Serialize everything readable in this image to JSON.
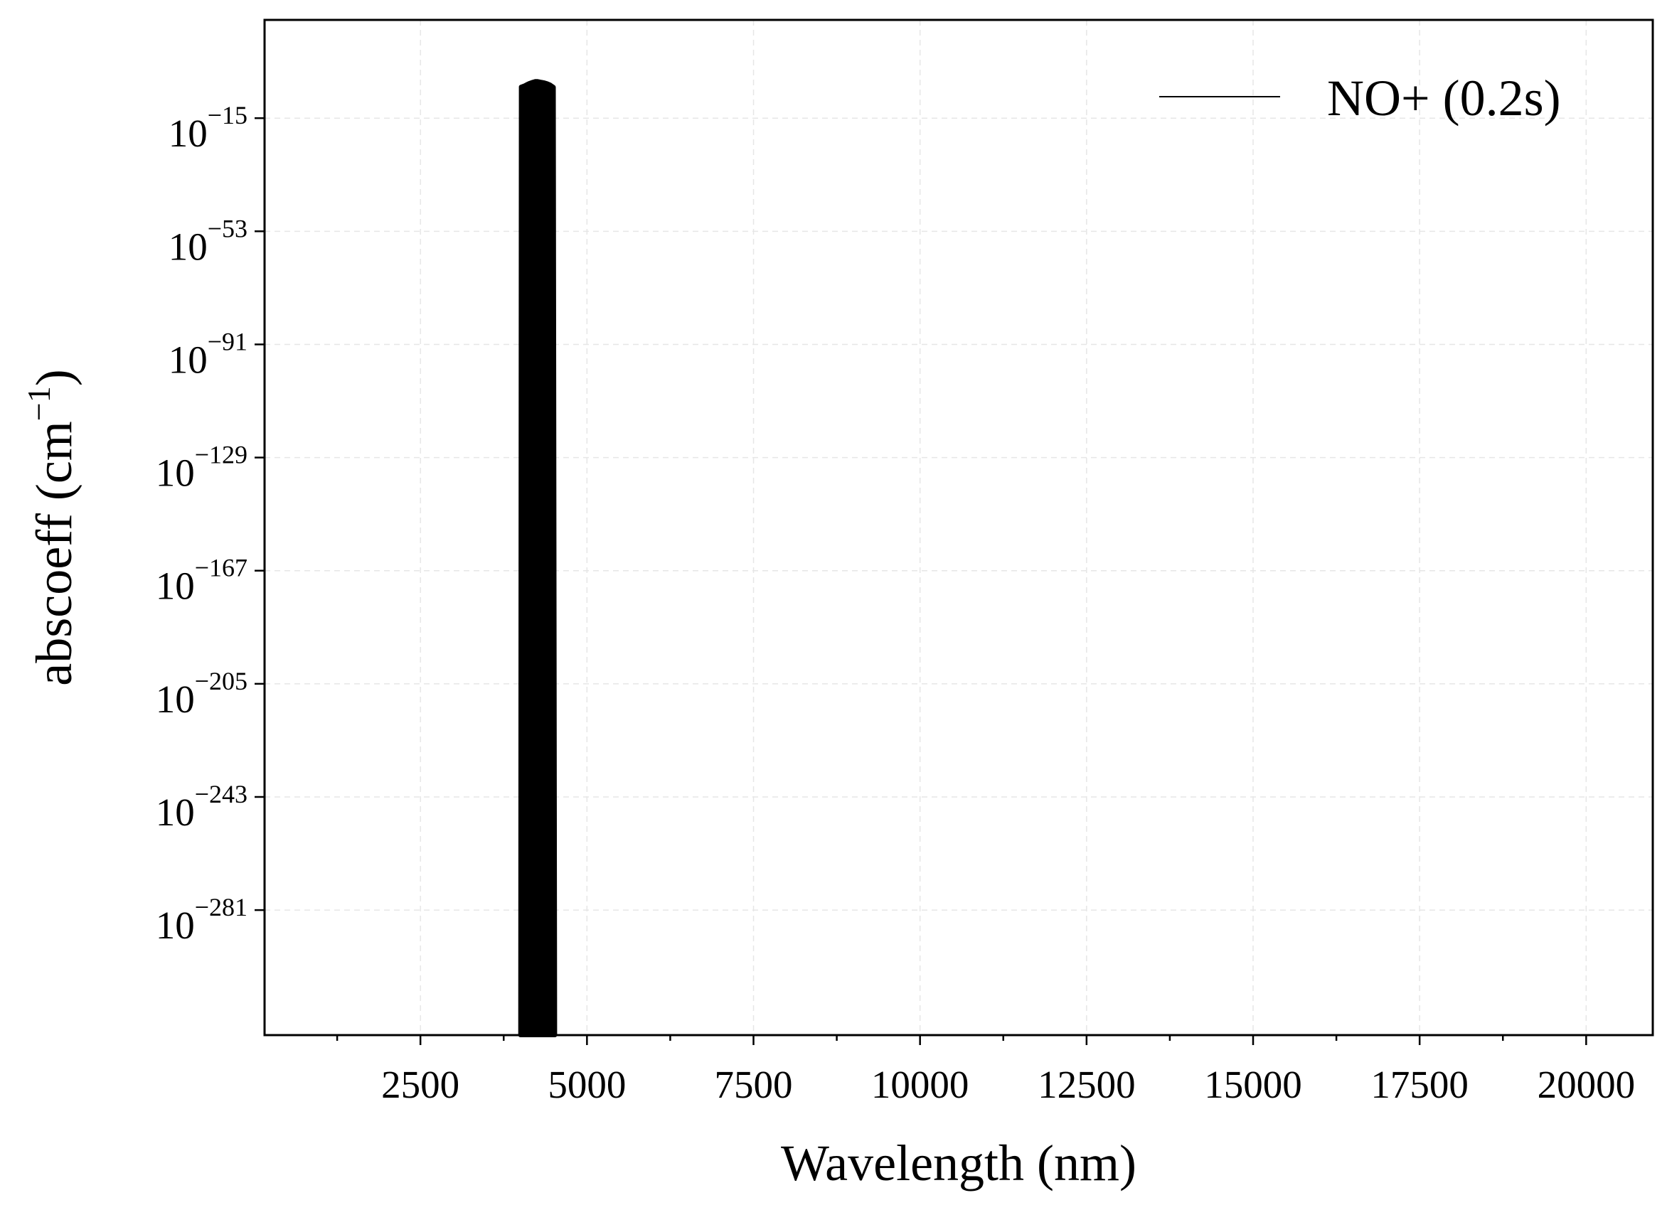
{
  "chart_data": {
    "type": "area",
    "title": "",
    "xlabel": "Wavelength (nm)",
    "ylabel": "abscoeff (cm",
    "ylabel_sup": "−1",
    "ylabel_close": ")",
    "xscale": "linear",
    "yscale": "log",
    "xlim": [
      160,
      21000
    ],
    "ylim_exp": [
      -323,
      18
    ],
    "grid": true,
    "legend_position": "top-right",
    "x_ticks": [
      {
        "value": 2500,
        "label": "2500"
      },
      {
        "value": 5000,
        "label": "5000"
      },
      {
        "value": 7500,
        "label": "7500"
      },
      {
        "value": 10000,
        "label": "10000"
      },
      {
        "value": 12500,
        "label": "12500"
      },
      {
        "value": 15000,
        "label": "15000"
      },
      {
        "value": 17500,
        "label": "17500"
      },
      {
        "value": 20000,
        "label": "20000"
      }
    ],
    "x_minor_ticks": [
      1250,
      3750,
      6250,
      8750,
      11250,
      13750,
      16250,
      18750
    ],
    "y_ticks": [
      {
        "exp": -15,
        "base": "10",
        "sup": "−15"
      },
      {
        "exp": -53,
        "base": "10",
        "sup": "−53"
      },
      {
        "exp": -91,
        "base": "10",
        "sup": "−91"
      },
      {
        "exp": -129,
        "base": "10",
        "sup": "−129"
      },
      {
        "exp": -167,
        "base": "10",
        "sup": "−167"
      },
      {
        "exp": -205,
        "base": "10",
        "sup": "−205"
      },
      {
        "exp": -243,
        "base": "10",
        "sup": "−243"
      },
      {
        "exp": -281,
        "base": "10",
        "sup": "−281"
      }
    ],
    "series": [
      {
        "name": "NO+ (0.2s)",
        "color": "#000000",
        "x_nm": [
          4000,
          4010,
          4060,
          4100,
          4140,
          4180,
          4220,
          4260,
          4300,
          4350,
          4400,
          4450,
          4500,
          4520
        ],
        "y_log10": [
          -323,
          -4.5,
          -4.1,
          -3.6,
          -3.2,
          -2.9,
          -2.6,
          -2.6,
          -2.8,
          -3.0,
          -3.3,
          -3.8,
          -4.6,
          -323
        ]
      }
    ]
  }
}
